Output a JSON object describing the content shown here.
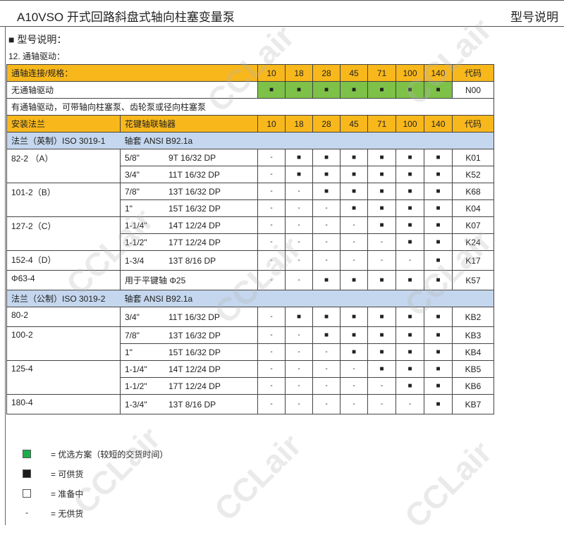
{
  "header": {
    "title": "A10VSO 开式回路斜盘式轴向柱塞变量泵",
    "right": "型号说明"
  },
  "section_title": "■  型号说明：",
  "subsection": "12. 通轴驱动：",
  "sizes": [
    "10",
    "18",
    "28",
    "45",
    "71",
    "100",
    "140"
  ],
  "code_label": "代码",
  "table1": {
    "header": "通轴连接/规格：",
    "row": {
      "label": "无通轴驱动",
      "marks": [
        "■",
        "■",
        "■",
        "■",
        "■",
        "■",
        "■"
      ],
      "code": "N00"
    }
  },
  "note_row": "有通轴驱动，可带轴向柱塞泵、齿轮泵或径向柱塞泵",
  "table2": {
    "col1": "安装法兰",
    "col2": "花键轴联轴器"
  },
  "groups": [
    {
      "title": "法兰（英制）ISO 3019-1",
      "title2": "轴套 ANSI B92.1a",
      "flanges": [
        {
          "name": "82-2 （A）",
          "rows": [
            {
              "spline": "5/8\"",
              "teeth": "9T 16/32 DP",
              "marks": [
                "-",
                "■",
                "■",
                "■",
                "■",
                "■",
                "■"
              ],
              "code": "K01"
            },
            {
              "spline": "3/4\"",
              "teeth": "11T 16/32 DP",
              "marks": [
                "-",
                "■",
                "■",
                "■",
                "■",
                "■",
                "■"
              ],
              "code": "K52"
            }
          ]
        },
        {
          "name": "101-2（B）",
          "rows": [
            {
              "spline": "7/8\"",
              "teeth": "13T 16/32 DP",
              "marks": [
                "-",
                "-",
                "■",
                "■",
                "■",
                "■",
                "■"
              ],
              "code": "K68"
            },
            {
              "spline": "1\"",
              "teeth": "15T 16/32 DP",
              "marks": [
                "-",
                "-",
                "-",
                "■",
                "■",
                "■",
                "■"
              ],
              "code": "K04"
            }
          ]
        },
        {
          "name": "127-2（C）",
          "rows": [
            {
              "spline": "1-1/4\"",
              "teeth": "14T 12/24 DP",
              "marks": [
                "-",
                "-",
                "-",
                "-",
                "■",
                "■",
                "■"
              ],
              "code": "K07"
            },
            {
              "spline": "1-1/2\"",
              "teeth": "17T 12/24 DP",
              "marks": [
                "-",
                "-",
                "-",
                "-",
                "-",
                "■",
                "■"
              ],
              "code": "K24"
            }
          ]
        },
        {
          "name": "152-4（D）",
          "rows": [
            {
              "spline": "1-3/4",
              "teeth": "13T 8/16 DP",
              "marks": [
                "-",
                "-",
                "-",
                "-",
                "-",
                "-",
                "■"
              ],
              "code": "K17"
            }
          ]
        },
        {
          "name": "Φ63-4",
          "rows": [
            {
              "spline": "用于平键轴  Φ25",
              "teeth": "",
              "marks": [
                "-",
                "-",
                "■",
                "■",
                "■",
                "■",
                "■"
              ],
              "code": "K57"
            }
          ]
        }
      ]
    },
    {
      "title": "法兰（公制）ISO 3019-2",
      "title2": "轴套 ANSI B92.1a",
      "flanges": [
        {
          "name": "80-2",
          "rows": [
            {
              "spline": "3/4\"",
              "teeth": "11T 16/32 DP",
              "marks": [
                "-",
                "■",
                "■",
                "■",
                "■",
                "■",
                "■"
              ],
              "code": "KB2"
            }
          ]
        },
        {
          "name": "100-2",
          "rows": [
            {
              "spline": "7/8\"",
              "teeth": "13T 16/32 DP",
              "marks": [
                "-",
                "-",
                "■",
                "■",
                "■",
                "■",
                "■"
              ],
              "code": "KB3"
            },
            {
              "spline": "1\"",
              "teeth": "15T 16/32 DP",
              "marks": [
                "-",
                "-",
                "-",
                "■",
                "■",
                "■",
                "■"
              ],
              "code": "KB4"
            }
          ]
        },
        {
          "name": "125-4",
          "rows": [
            {
              "spline": "1-1/4\"",
              "teeth": "14T 12/24 DP",
              "marks": [
                "-",
                "-",
                "-",
                "-",
                "■",
                "■",
                "■"
              ],
              "code": "KB5"
            },
            {
              "spline": "1-1/2\"",
              "teeth": "17T 12/24 DP",
              "marks": [
                "-",
                "-",
                "-",
                "-",
                "-",
                "■",
                "■"
              ],
              "code": "KB6"
            }
          ]
        },
        {
          "name": "180-4",
          "rows": [
            {
              "spline": "1-3/4\"",
              "teeth": "13T 8/16 DP",
              "marks": [
                "-",
                "-",
                "-",
                "-",
                "-",
                "-",
                "■"
              ],
              "code": "KB7"
            }
          ]
        }
      ]
    }
  ],
  "legend": [
    {
      "symbol": "green-box",
      "color": "#1aae4a",
      "text": "=  优选方案（较短的交货时间）"
    },
    {
      "symbol": "black-box",
      "color": "#1b1b1b",
      "text": "=  可供货"
    },
    {
      "symbol": "empty-box",
      "color": "#ffffff",
      "text": "=  准备中"
    },
    {
      "symbol": "dash",
      "text": "=  无供货",
      "mark": "-"
    }
  ],
  "colors": {
    "header_yellow": "#f8b81c",
    "preferred_green": "#7dc148",
    "group_blue": "#c5d7ee"
  },
  "watermark": "CCLair"
}
